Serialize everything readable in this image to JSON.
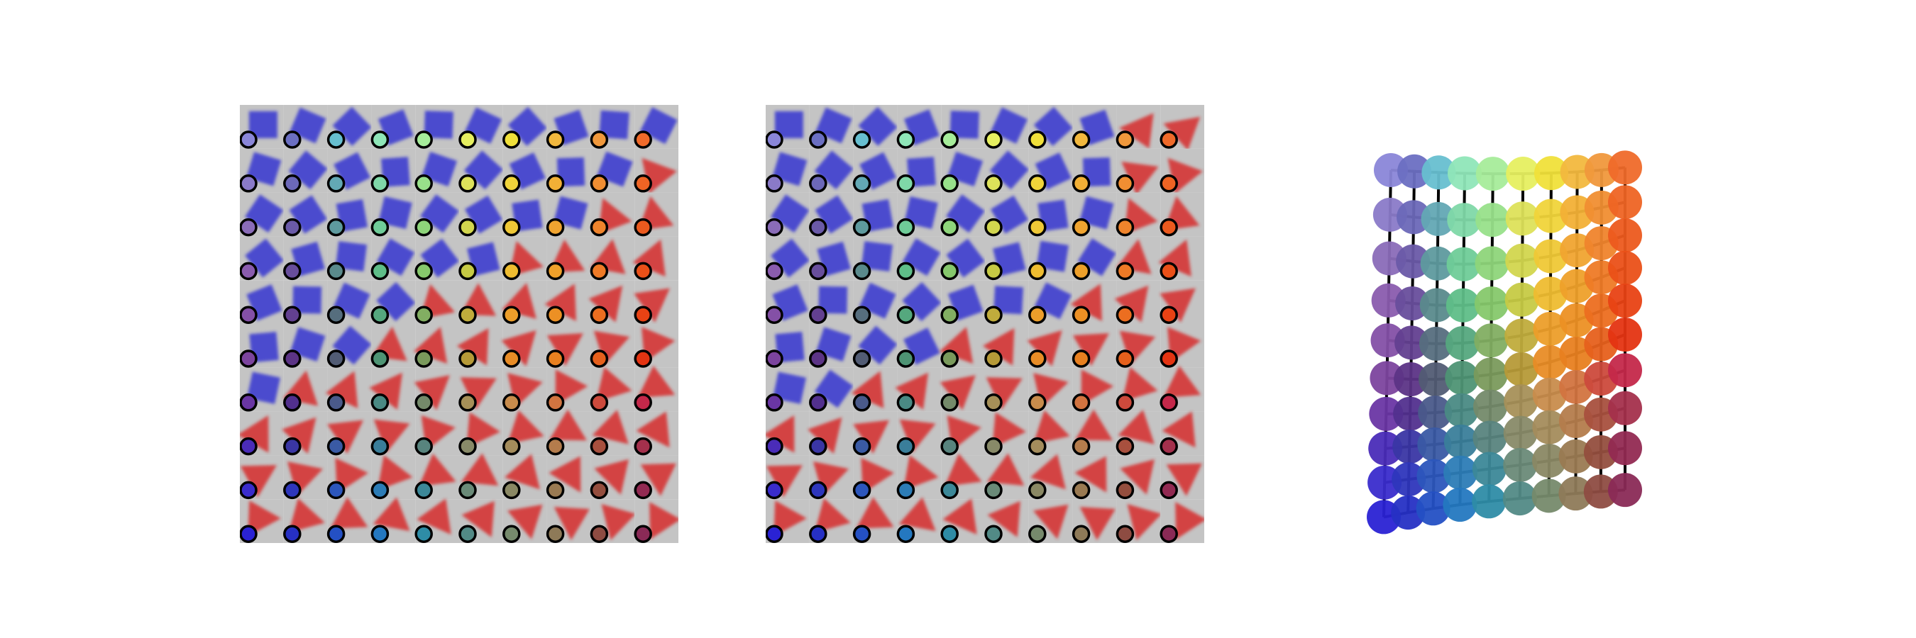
{
  "figure": {
    "panels": [
      {
        "id": "a",
        "kind": "image-grid-with-latent-markers",
        "rows": 10,
        "cols": 10
      },
      {
        "id": "b",
        "kind": "image-grid-with-latent-markers",
        "rows": 10,
        "cols": 10
      },
      {
        "id": "c",
        "kind": "embedded-grid-graph",
        "rows": 10,
        "cols": 10
      }
    ],
    "colors": {
      "cell_bg": "#c4c4c4",
      "blue_shape": "#3b3bd0",
      "red_shape": "#d63030",
      "marker_stroke": "#000000",
      "edge": "#000000"
    },
    "grid_colormap": [
      [
        "#8a86d8",
        "#6b6fc2",
        "#67bfd0",
        "#8fe6b8",
        "#a6ec9a",
        "#e6ef60",
        "#f0e03a",
        "#f2b83e",
        "#f0983c",
        "#ef6a2a"
      ],
      [
        "#8a7ac8",
        "#6c68b8",
        "#63a8b4",
        "#7fd8a8",
        "#98e08a",
        "#dde25a",
        "#f0d43a",
        "#f2b036",
        "#f08e32",
        "#ee6424"
      ],
      [
        "#8a6cb8",
        "#6a5aa8",
        "#5e9a9e",
        "#6fcc98",
        "#8ed57a",
        "#d2d64e",
        "#efc836",
        "#f0a430",
        "#ef842c",
        "#ec5a1e"
      ],
      [
        "#8a5cae",
        "#684e9c",
        "#5a8a8c",
        "#5fbe88",
        "#86c86c",
        "#c6ca44",
        "#eebc30",
        "#eea02a",
        "#ee7a26",
        "#ea5018"
      ],
      [
        "#8450a6",
        "#634090",
        "#566e7e",
        "#55a87e",
        "#82ae62",
        "#c0ac3c",
        "#ec9e2a",
        "#ec9024",
        "#ec6e20",
        "#e84214"
      ],
      [
        "#7c449e",
        "#5c3486",
        "#525c74",
        "#4e9474",
        "#7a9a5c",
        "#b69a38",
        "#e88c26",
        "#e88020",
        "#e6601c",
        "#e43412"
      ],
      [
        "#6a36a4",
        "#52308e",
        "#4a5a8a",
        "#4a8a84",
        "#748a6a",
        "#a69058",
        "#c88c4c",
        "#d27440",
        "#cc4a3c",
        "#c4284a"
      ],
      [
        "#4a2cb8",
        "#3a36a4",
        "#3a5aa4",
        "#3a7e9a",
        "#58847e",
        "#888a68",
        "#a48c5c",
        "#b47c4c",
        "#a8503e",
        "#a4304c"
      ],
      [
        "#3a2ccc",
        "#2e36bc",
        "#2c56bc",
        "#2c7cb6",
        "#3c8898",
        "#6a8a78",
        "#8a8864",
        "#9a7a52",
        "#944e3e",
        "#922a52"
      ],
      [
        "#2a22d4",
        "#2630c4",
        "#2450c4",
        "#2478c0",
        "#2e8ca6",
        "#528a86",
        "#768a6c",
        "#8e7a58",
        "#8e4c42",
        "#8a2a56"
      ]
    ]
  }
}
